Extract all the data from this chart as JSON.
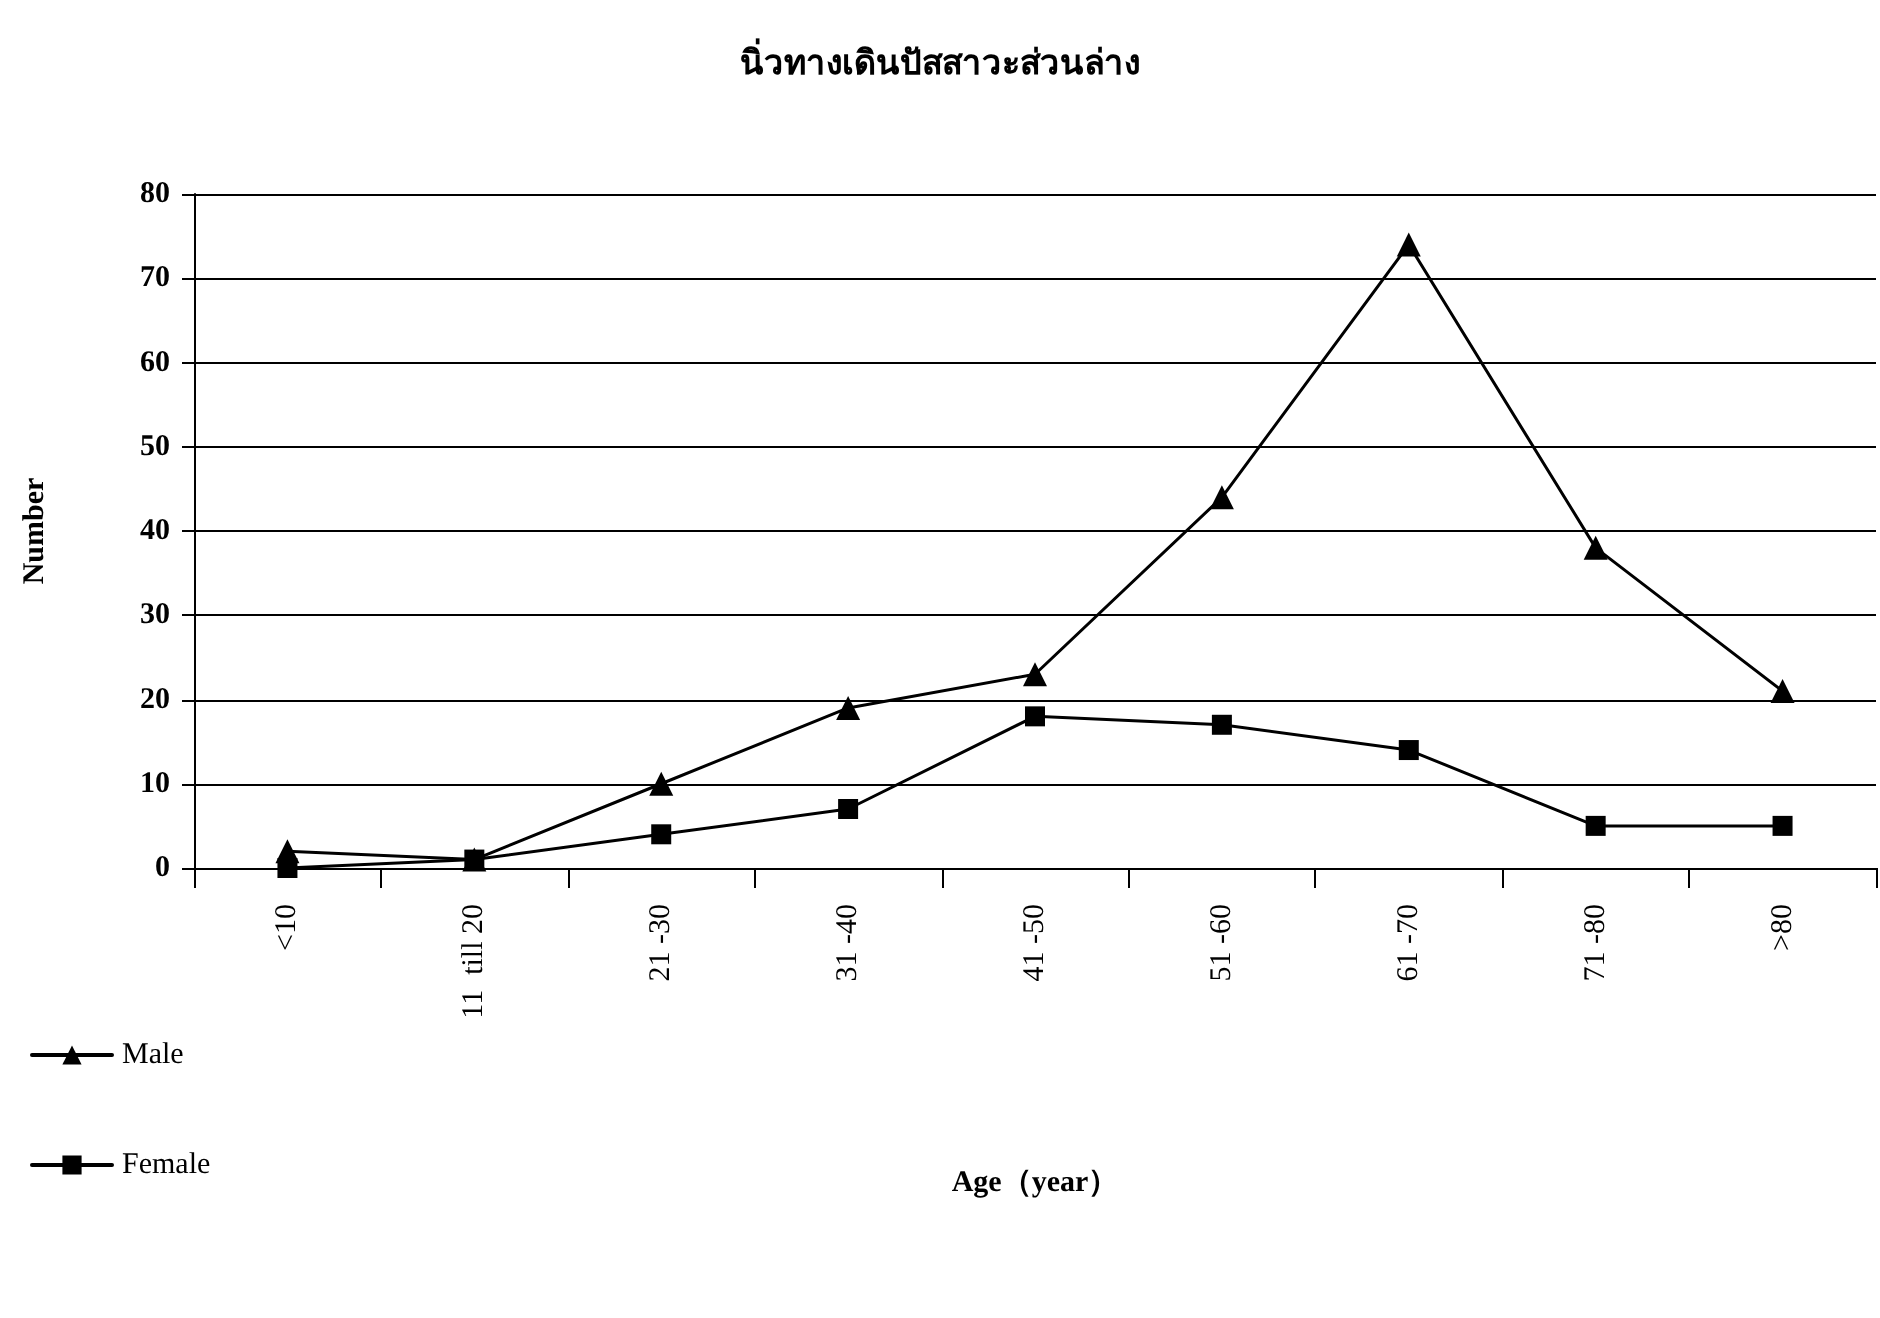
{
  "chart_data": {
    "type": "line",
    "title": "นิ่วทางเดินปัสสาวะส่วนล่าง",
    "xlabel": "Age（year）",
    "ylabel": "Number",
    "categories": [
      "<10",
      "11  till 20",
      "21 -30",
      "31 -40",
      "41 -50",
      "51 -60",
      "61 -70",
      "71 -80",
      ">80"
    ],
    "series": [
      {
        "name": "Male",
        "color": "#000000",
        "marker": "triangle",
        "values": [
          2,
          1,
          10,
          19,
          23,
          44,
          74,
          38,
          21
        ]
      },
      {
        "name": "Female",
        "color": "#000000",
        "marker": "square",
        "values": [
          0,
          1,
          4,
          7,
          18,
          17,
          14,
          5,
          5
        ]
      }
    ],
    "ylim": [
      0,
      80
    ],
    "yticks": [
      0,
      10,
      20,
      30,
      40,
      50,
      60,
      70,
      80
    ],
    "grid": "y",
    "legend": "bottom left",
    "line_style": "solid"
  }
}
